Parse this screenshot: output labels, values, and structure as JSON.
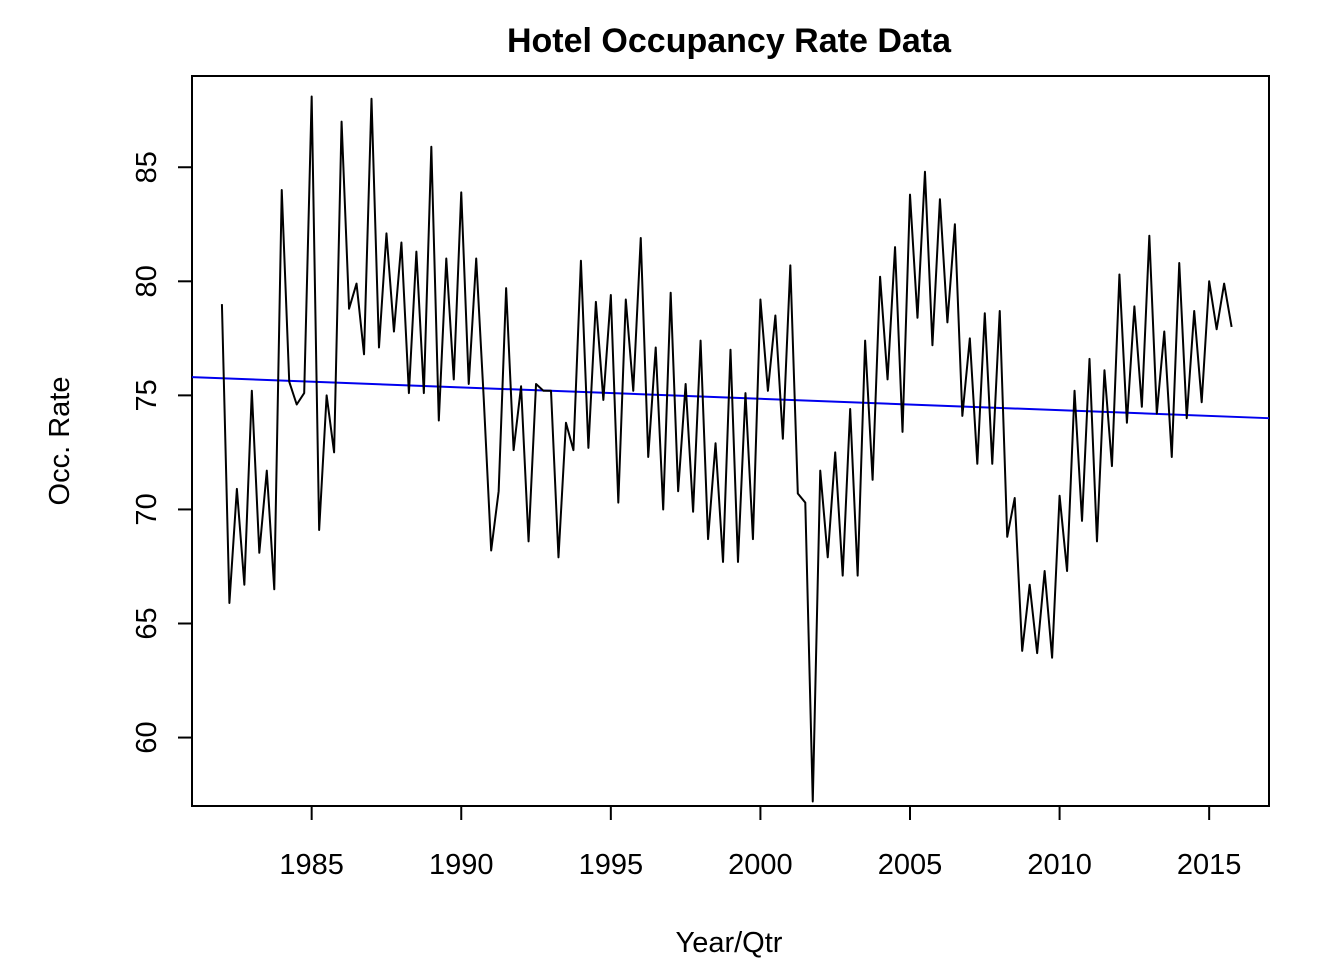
{
  "chart_data": {
    "type": "line",
    "title": "Hotel Occupancy Rate Data",
    "xlabel": "Year/Qtr",
    "ylabel": "Occ. Rate",
    "xlim": [
      1981.0,
      2017.0
    ],
    "ylim": [
      57.0,
      89.0
    ],
    "x_ticks": [
      1985,
      1990,
      1995,
      2000,
      2005,
      2010,
      2015
    ],
    "y_ticks": [
      60,
      65,
      70,
      75,
      80,
      85
    ],
    "grid": false,
    "legend": "none",
    "colors": {
      "series": "#000000",
      "trend": "#0000ee"
    },
    "trend_line": {
      "x": [
        1981.0,
        2017.0
      ],
      "y": [
        75.8,
        74.0
      ]
    },
    "series": [
      {
        "start": 1982.0,
        "step": 0.25,
        "values": [
          79.0,
          65.9,
          70.9,
          66.7,
          75.2,
          68.1,
          71.7,
          66.5,
          84.0,
          75.6,
          74.6,
          75.1,
          88.1,
          69.1,
          75.0,
          72.5,
          87.0,
          78.8,
          79.9,
          76.8,
          88.0,
          77.1,
          82.1,
          77.8,
          81.7,
          75.1,
          81.3,
          75.1,
          85.9,
          73.9,
          81.0,
          75.7,
          83.9,
          75.5,
          81.0,
          74.9,
          68.2,
          70.8,
          79.7,
          72.6,
          75.4,
          68.6,
          75.5,
          75.2,
          75.2,
          67.9,
          73.8,
          72.6,
          80.9,
          72.7,
          79.1,
          74.8,
          79.4,
          70.3,
          79.2,
          75.2,
          81.9,
          72.3,
          77.1,
          70.0,
          79.5,
          70.8,
          75.5,
          69.9,
          77.4,
          68.7,
          72.9,
          67.7,
          77.0,
          67.7,
          75.1,
          68.7,
          79.2,
          75.2,
          78.5,
          73.1,
          80.7,
          70.7,
          70.3,
          57.2,
          71.7,
          67.9,
          72.5,
          67.1,
          74.4,
          67.1,
          77.4,
          71.3,
          80.2,
          75.7,
          81.5,
          73.4,
          83.8,
          78.4,
          84.8,
          77.2,
          83.6,
          78.2,
          82.5,
          74.1,
          77.5,
          72.0,
          78.6,
          72.0,
          78.7,
          68.8,
          70.5,
          63.8,
          66.7,
          63.7,
          67.3,
          63.5,
          70.6,
          67.3,
          75.2,
          69.5,
          76.6,
          68.6,
          76.1,
          71.9,
          80.3,
          73.8,
          78.9,
          74.5,
          82.0,
          74.2,
          77.8,
          72.3,
          80.8,
          74.0,
          78.7,
          74.7,
          80.0,
          77.9,
          79.9,
          78.0
        ]
      }
    ]
  }
}
